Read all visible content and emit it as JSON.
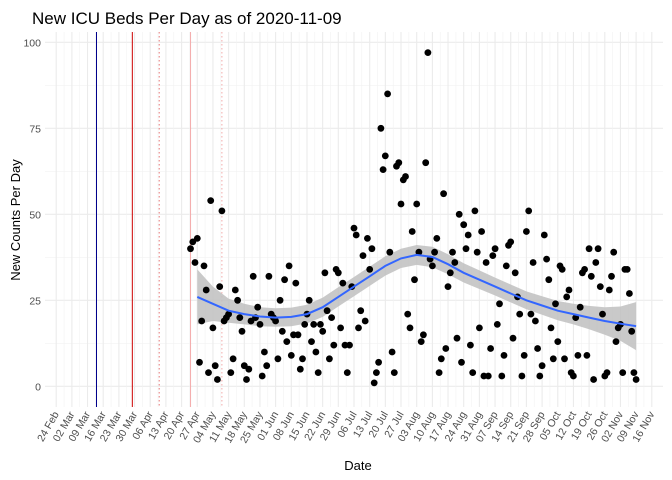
{
  "chart_data": {
    "type": "scatter",
    "title": "New ICU Beds Per Day as of 2020-11-09",
    "xlabel": "Date",
    "ylabel": "New Counts Per Day",
    "ylim": [
      -6,
      103
    ],
    "y_ticks": [
      0,
      25,
      50,
      75,
      100
    ],
    "y_tick_labels": [
      "0",
      "25",
      "50",
      "75",
      "100"
    ],
    "x_range": [
      "2020-02-19",
      "2020-11-21"
    ],
    "x_ticks": [
      "2020-02-24",
      "2020-03-02",
      "2020-03-09",
      "2020-03-16",
      "2020-03-23",
      "2020-03-30",
      "2020-04-06",
      "2020-04-13",
      "2020-04-20",
      "2020-04-27",
      "2020-05-04",
      "2020-05-11",
      "2020-05-18",
      "2020-05-25",
      "2020-06-01",
      "2020-06-08",
      "2020-06-15",
      "2020-06-22",
      "2020-06-29",
      "2020-07-06",
      "2020-07-13",
      "2020-07-20",
      "2020-07-27",
      "2020-08-03",
      "2020-08-10",
      "2020-08-17",
      "2020-08-24",
      "2020-08-31",
      "2020-09-07",
      "2020-09-14",
      "2020-09-21",
      "2020-09-28",
      "2020-10-05",
      "2020-10-12",
      "2020-10-19",
      "2020-10-26",
      "2020-11-02",
      "2020-11-09",
      "2020-11-16"
    ],
    "x_tick_labels": [
      "24 Feb",
      "02 Mar",
      "09 Mar",
      "16 Mar",
      "23 Mar",
      "30 Mar",
      "06 Apr",
      "13 Apr",
      "20 Apr",
      "27 Apr",
      "04 May",
      "11 May",
      "18 May",
      "25 May",
      "01 Jun",
      "08 Jun",
      "15 Jun",
      "22 Jun",
      "29 Jun",
      "06 Jul",
      "13 Jul",
      "20 Jul",
      "27 Jul",
      "03 Aug",
      "10 Aug",
      "17 Aug",
      "24 Aug",
      "31 Aug",
      "07 Sep",
      "14 Sep",
      "21 Sep",
      "28 Sep",
      "05 Oct",
      "12 Oct",
      "19 Oct",
      "26 Oct",
      "02 Nov",
      "09 Nov",
      "16 Nov"
    ],
    "grid": true,
    "vlines": [
      {
        "x": "2020-03-13",
        "color": "#00008b",
        "style": "solid"
      },
      {
        "x": "2020-03-29",
        "color": "#cc0000",
        "style": "solid"
      },
      {
        "x": "2020-04-10",
        "color": "#e87878",
        "style": "dotted"
      },
      {
        "x": "2020-04-24",
        "color": "#f3aaaa",
        "style": "solid"
      },
      {
        "x": "2020-05-08",
        "color": "#f3aaaa",
        "style": "dotted"
      }
    ],
    "points": [
      [
        "2020-04-24",
        40
      ],
      [
        "2020-04-25",
        42
      ],
      [
        "2020-04-26",
        36
      ],
      [
        "2020-04-27",
        43
      ],
      [
        "2020-04-28",
        7
      ],
      [
        "2020-04-29",
        19
      ],
      [
        "2020-04-30",
        35
      ],
      [
        "2020-05-01",
        28
      ],
      [
        "2020-05-02",
        4
      ],
      [
        "2020-05-03",
        54
      ],
      [
        "2020-05-04",
        17
      ],
      [
        "2020-05-05",
        6
      ],
      [
        "2020-05-06",
        2
      ],
      [
        "2020-05-07",
        29
      ],
      [
        "2020-05-08",
        51
      ],
      [
        "2020-05-09",
        19
      ],
      [
        "2020-05-10",
        20
      ],
      [
        "2020-05-11",
        21
      ],
      [
        "2020-05-12",
        4
      ],
      [
        "2020-05-13",
        8
      ],
      [
        "2020-05-14",
        28
      ],
      [
        "2020-05-15",
        25
      ],
      [
        "2020-05-16",
        20
      ],
      [
        "2020-05-17",
        16
      ],
      [
        "2020-05-18",
        6
      ],
      [
        "2020-05-19",
        2
      ],
      [
        "2020-05-20",
        5
      ],
      [
        "2020-05-21",
        19
      ],
      [
        "2020-05-22",
        32
      ],
      [
        "2020-05-23",
        20
      ],
      [
        "2020-05-24",
        23
      ],
      [
        "2020-05-25",
        18
      ],
      [
        "2020-05-26",
        3
      ],
      [
        "2020-05-27",
        10
      ],
      [
        "2020-05-28",
        6
      ],
      [
        "2020-05-29",
        32
      ],
      [
        "2020-05-30",
        21
      ],
      [
        "2020-05-31",
        20
      ],
      [
        "2020-06-01",
        19
      ],
      [
        "2020-06-02",
        8
      ],
      [
        "2020-06-03",
        25
      ],
      [
        "2020-06-04",
        16
      ],
      [
        "2020-06-05",
        31
      ],
      [
        "2020-06-06",
        13
      ],
      [
        "2020-06-07",
        35
      ],
      [
        "2020-06-08",
        9
      ],
      [
        "2020-06-09",
        15
      ],
      [
        "2020-06-10",
        30
      ],
      [
        "2020-06-11",
        15
      ],
      [
        "2020-06-12",
        5
      ],
      [
        "2020-06-13",
        8
      ],
      [
        "2020-06-14",
        18
      ],
      [
        "2020-06-15",
        21
      ],
      [
        "2020-06-16",
        25
      ],
      [
        "2020-06-17",
        13
      ],
      [
        "2020-06-18",
        18
      ],
      [
        "2020-06-19",
        10
      ],
      [
        "2020-06-20",
        4
      ],
      [
        "2020-06-21",
        18
      ],
      [
        "2020-06-22",
        16
      ],
      [
        "2020-06-23",
        33
      ],
      [
        "2020-06-24",
        22
      ],
      [
        "2020-06-25",
        8
      ],
      [
        "2020-06-26",
        20
      ],
      [
        "2020-06-27",
        12
      ],
      [
        "2020-06-28",
        34
      ],
      [
        "2020-06-29",
        33
      ],
      [
        "2020-06-30",
        17
      ],
      [
        "2020-07-01",
        30
      ],
      [
        "2020-07-02",
        12
      ],
      [
        "2020-07-03",
        4
      ],
      [
        "2020-07-04",
        12
      ],
      [
        "2020-07-05",
        29
      ],
      [
        "2020-07-06",
        46
      ],
      [
        "2020-07-07",
        44
      ],
      [
        "2020-07-08",
        17
      ],
      [
        "2020-07-09",
        22
      ],
      [
        "2020-07-10",
        38
      ],
      [
        "2020-07-11",
        19
      ],
      [
        "2020-07-12",
        43
      ],
      [
        "2020-07-13",
        34
      ],
      [
        "2020-07-14",
        40
      ],
      [
        "2020-07-15",
        1
      ],
      [
        "2020-07-16",
        4
      ],
      [
        "2020-07-17",
        7
      ],
      [
        "2020-07-18",
        75
      ],
      [
        "2020-07-19",
        63
      ],
      [
        "2020-07-20",
        67
      ],
      [
        "2020-07-21",
        85
      ],
      [
        "2020-07-22",
        39
      ],
      [
        "2020-07-23",
        10
      ],
      [
        "2020-07-24",
        4
      ],
      [
        "2020-07-25",
        64
      ],
      [
        "2020-07-26",
        65
      ],
      [
        "2020-07-27",
        53
      ],
      [
        "2020-07-28",
        60
      ],
      [
        "2020-07-29",
        61
      ],
      [
        "2020-07-30",
        21
      ],
      [
        "2020-07-31",
        17
      ],
      [
        "2020-08-01",
        45
      ],
      [
        "2020-08-02",
        31
      ],
      [
        "2020-08-03",
        53
      ],
      [
        "2020-08-04",
        39
      ],
      [
        "2020-08-05",
        13
      ],
      [
        "2020-08-06",
        15
      ],
      [
        "2020-08-07",
        65
      ],
      [
        "2020-08-08",
        97
      ],
      [
        "2020-08-09",
        37
      ],
      [
        "2020-08-10",
        35
      ],
      [
        "2020-08-11",
        39
      ],
      [
        "2020-08-12",
        43
      ],
      [
        "2020-08-13",
        4
      ],
      [
        "2020-08-14",
        8
      ],
      [
        "2020-08-15",
        56
      ],
      [
        "2020-08-16",
        11
      ],
      [
        "2020-08-17",
        29
      ],
      [
        "2020-08-18",
        33
      ],
      [
        "2020-08-19",
        39
      ],
      [
        "2020-08-20",
        36
      ],
      [
        "2020-08-21",
        14
      ],
      [
        "2020-08-22",
        50
      ],
      [
        "2020-08-23",
        7
      ],
      [
        "2020-08-24",
        47
      ],
      [
        "2020-08-25",
        40
      ],
      [
        "2020-08-26",
        44
      ],
      [
        "2020-08-27",
        12
      ],
      [
        "2020-08-28",
        4
      ],
      [
        "2020-08-29",
        51
      ],
      [
        "2020-08-30",
        39
      ],
      [
        "2020-08-31",
        17
      ],
      [
        "2020-09-01",
        45
      ],
      [
        "2020-09-02",
        3
      ],
      [
        "2020-09-03",
        36
      ],
      [
        "2020-09-04",
        3
      ],
      [
        "2020-09-05",
        11
      ],
      [
        "2020-09-06",
        38
      ],
      [
        "2020-09-07",
        40
      ],
      [
        "2020-09-08",
        18
      ],
      [
        "2020-09-09",
        24
      ],
      [
        "2020-09-10",
        3
      ],
      [
        "2020-09-11",
        9
      ],
      [
        "2020-09-12",
        35
      ],
      [
        "2020-09-13",
        41
      ],
      [
        "2020-09-14",
        42
      ],
      [
        "2020-09-15",
        14
      ],
      [
        "2020-09-16",
        33
      ],
      [
        "2020-09-17",
        26
      ],
      [
        "2020-09-18",
        21
      ],
      [
        "2020-09-19",
        3
      ],
      [
        "2020-09-20",
        9
      ],
      [
        "2020-09-21",
        45
      ],
      [
        "2020-09-22",
        51
      ],
      [
        "2020-09-23",
        21
      ],
      [
        "2020-09-24",
        36
      ],
      [
        "2020-09-25",
        19
      ],
      [
        "2020-09-26",
        11
      ],
      [
        "2020-09-27",
        3
      ],
      [
        "2020-09-28",
        6
      ],
      [
        "2020-09-29",
        44
      ],
      [
        "2020-09-30",
        37
      ],
      [
        "2020-10-01",
        31
      ],
      [
        "2020-10-02",
        17
      ],
      [
        "2020-10-03",
        8
      ],
      [
        "2020-10-04",
        24
      ],
      [
        "2020-10-05",
        13
      ],
      [
        "2020-10-06",
        35
      ],
      [
        "2020-10-07",
        34
      ],
      [
        "2020-10-08",
        8
      ],
      [
        "2020-10-09",
        26
      ],
      [
        "2020-10-10",
        28
      ],
      [
        "2020-10-11",
        4
      ],
      [
        "2020-10-12",
        3
      ],
      [
        "2020-10-13",
        20
      ],
      [
        "2020-10-14",
        9
      ],
      [
        "2020-10-15",
        23
      ],
      [
        "2020-10-16",
        33
      ],
      [
        "2020-10-17",
        34
      ],
      [
        "2020-10-18",
        9
      ],
      [
        "2020-10-19",
        40
      ],
      [
        "2020-10-20",
        32
      ],
      [
        "2020-10-21",
        2
      ],
      [
        "2020-10-22",
        36
      ],
      [
        "2020-10-23",
        40
      ],
      [
        "2020-10-24",
        29
      ],
      [
        "2020-10-25",
        21
      ],
      [
        "2020-10-26",
        3
      ],
      [
        "2020-10-27",
        4
      ],
      [
        "2020-10-28",
        28
      ],
      [
        "2020-10-29",
        32
      ],
      [
        "2020-10-30",
        39
      ],
      [
        "2020-10-31",
        13
      ],
      [
        "2020-11-01",
        17
      ],
      [
        "2020-11-02",
        18
      ],
      [
        "2020-11-03",
        4
      ],
      [
        "2020-11-04",
        34
      ],
      [
        "2020-11-05",
        34
      ],
      [
        "2020-11-06",
        27
      ],
      [
        "2020-11-07",
        16
      ],
      [
        "2020-11-08",
        4
      ],
      [
        "2020-11-09",
        2
      ]
    ],
    "trend": {
      "color": "#3366ff",
      "ribbon_color": "#bfbfbf",
      "points": [
        {
          "x": "2020-04-27",
          "y": 26,
          "lo": 18,
          "hi": 34
        },
        {
          "x": "2020-05-04",
          "y": 24,
          "lo": 19,
          "hi": 29
        },
        {
          "x": "2020-05-11",
          "y": 22,
          "lo": 18.5,
          "hi": 25.5
        },
        {
          "x": "2020-05-18",
          "y": 21,
          "lo": 18,
          "hi": 24
        },
        {
          "x": "2020-05-25",
          "y": 20.3,
          "lo": 17.5,
          "hi": 23
        },
        {
          "x": "2020-06-01",
          "y": 20,
          "lo": 17.3,
          "hi": 22.7
        },
        {
          "x": "2020-06-08",
          "y": 20.2,
          "lo": 17.5,
          "hi": 22.9
        },
        {
          "x": "2020-06-15",
          "y": 21,
          "lo": 18.3,
          "hi": 23.7
        },
        {
          "x": "2020-06-22",
          "y": 23,
          "lo": 20.2,
          "hi": 25.8
        },
        {
          "x": "2020-06-29",
          "y": 26,
          "lo": 23.2,
          "hi": 28.8
        },
        {
          "x": "2020-07-06",
          "y": 29,
          "lo": 26.2,
          "hi": 31.8
        },
        {
          "x": "2020-07-13",
          "y": 32,
          "lo": 29.2,
          "hi": 34.8
        },
        {
          "x": "2020-07-20",
          "y": 35,
          "lo": 32.2,
          "hi": 37.8
        },
        {
          "x": "2020-07-27",
          "y": 37.2,
          "lo": 34.4,
          "hi": 40
        },
        {
          "x": "2020-08-03",
          "y": 38.2,
          "lo": 35.3,
          "hi": 41.1
        },
        {
          "x": "2020-08-10",
          "y": 37.6,
          "lo": 34.6,
          "hi": 40.6
        },
        {
          "x": "2020-08-17",
          "y": 35.5,
          "lo": 32.6,
          "hi": 38.4
        },
        {
          "x": "2020-08-24",
          "y": 33,
          "lo": 30.2,
          "hi": 35.8
        },
        {
          "x": "2020-08-31",
          "y": 31,
          "lo": 28.3,
          "hi": 33.7
        },
        {
          "x": "2020-09-07",
          "y": 29,
          "lo": 26.4,
          "hi": 31.6
        },
        {
          "x": "2020-09-14",
          "y": 27,
          "lo": 24.4,
          "hi": 29.6
        },
        {
          "x": "2020-09-21",
          "y": 25,
          "lo": 22.4,
          "hi": 27.6
        },
        {
          "x": "2020-09-28",
          "y": 23.5,
          "lo": 20.8,
          "hi": 26.2
        },
        {
          "x": "2020-10-05",
          "y": 22,
          "lo": 19.2,
          "hi": 24.8
        },
        {
          "x": "2020-10-12",
          "y": 21,
          "lo": 18,
          "hi": 24
        },
        {
          "x": "2020-10-19",
          "y": 20,
          "lo": 16.6,
          "hi": 23.4
        },
        {
          "x": "2020-10-26",
          "y": 19,
          "lo": 15,
          "hi": 23
        },
        {
          "x": "2020-11-02",
          "y": 18.2,
          "lo": 13.2,
          "hi": 23.2
        },
        {
          "x": "2020-11-09",
          "y": 17.5,
          "lo": 10.5,
          "hi": 24.5
        }
      ]
    }
  }
}
